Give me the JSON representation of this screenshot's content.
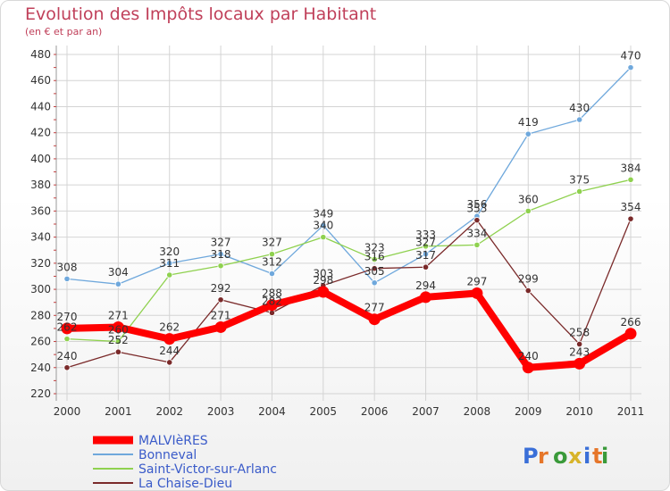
{
  "title": "Evolution des Impôts locaux par Habitant",
  "subtitle": "(en € et par an)",
  "logo": "Proxiti",
  "colors": {
    "title": "#c0405a",
    "legend_text": "#3a5bc9",
    "grid": "#d4d4d4",
    "axis": "#999999"
  },
  "chart_data": {
    "type": "line",
    "title": "Evolution des Impôts locaux par Habitant",
    "subtitle": "(en € et par an)",
    "xlabel": "",
    "ylabel": "",
    "x": [
      "2000",
      "2001",
      "2002",
      "2003",
      "2004",
      "2005",
      "2006",
      "2007",
      "2008",
      "2009",
      "2010",
      "2011"
    ],
    "ylim": [
      220,
      480
    ],
    "ytick_step": 20,
    "grid": true,
    "legend_position": "bottom-left",
    "series": [
      {
        "name": "MALVIèRES",
        "color": "#ff0000",
        "emphasis": true,
        "values": [
          270,
          271,
          262,
          271,
          288,
          298,
          277,
          294,
          297,
          240,
          243,
          266
        ]
      },
      {
        "name": "Bonneval",
        "color": "#6fa8dc",
        "emphasis": false,
        "values": [
          308,
          304,
          320,
          327,
          312,
          349,
          305,
          327,
          356,
          419,
          430,
          470
        ]
      },
      {
        "name": "Saint-Victor-sur-Arlanc",
        "color": "#8fd14f",
        "emphasis": false,
        "values": [
          262,
          260,
          311,
          318,
          327,
          340,
          323,
          333,
          334,
          360,
          375,
          384
        ]
      },
      {
        "name": "La Chaise-Dieu",
        "color": "#7a2a2a",
        "emphasis": false,
        "values": [
          240,
          252,
          244,
          292,
          282,
          303,
          316,
          317,
          353,
          299,
          258,
          354
        ]
      }
    ]
  }
}
